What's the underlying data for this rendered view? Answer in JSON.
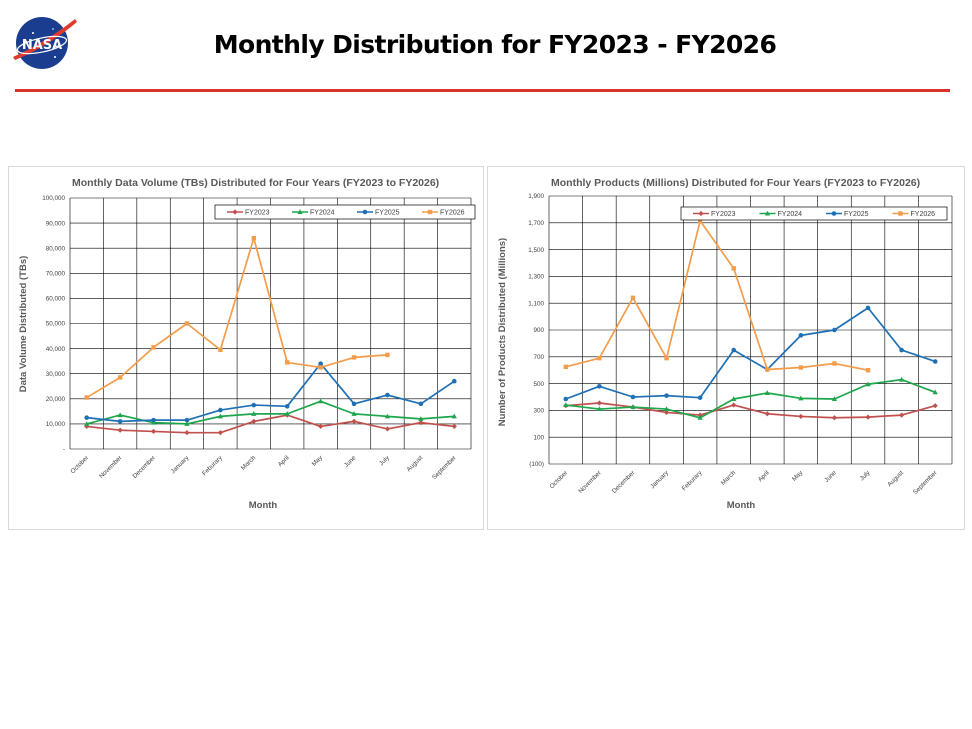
{
  "slide": {
    "title": "Monthly Distribution for FY2023 - FY2026",
    "logo_text": "NASA",
    "colors": {
      "rule": "#d7322b",
      "logo_blue": "#1a3d8f"
    }
  },
  "chart_data": [
    {
      "type": "line",
      "title": "Monthly Data Volume (TBs) Distributed for Four Years (FY2023 to FY2026)",
      "xlabel": "Month",
      "ylabel": "Data Volume Distributed (TBs)",
      "ylim": [
        0,
        100000
      ],
      "yticks": [
        "-",
        "10,000",
        "20,000",
        "30,000",
        "40,000",
        "50,000",
        "60,000",
        "70,000",
        "80,000",
        "90,000",
        "100,000"
      ],
      "grid": true,
      "legend_position": "top",
      "categories": [
        "October",
        "November",
        "December",
        "January",
        "Feburary",
        "March",
        "April",
        "May",
        "June",
        "July",
        "August",
        "September"
      ],
      "series": [
        {
          "name": "FY2023",
          "color": "#c0504d",
          "marker": "diamond",
          "values": [
            9000,
            7500,
            7000,
            6500,
            6500,
            11000,
            13500,
            9000,
            11000,
            8000,
            10500,
            9000
          ]
        },
        {
          "name": "FY2024",
          "color": "#1ea64c",
          "marker": "triangle",
          "values": [
            10000,
            13500,
            10500,
            10000,
            13000,
            14000,
            14000,
            19000,
            14000,
            13000,
            12000,
            13000
          ]
        },
        {
          "name": "FY2025",
          "color": "#1f6fb5",
          "marker": "circle",
          "values": [
            12500,
            11000,
            11500,
            11500,
            15500,
            17500,
            17000,
            34000,
            18000,
            21500,
            18000,
            27000
          ]
        },
        {
          "name": "FY2026",
          "color": "#f39c4a",
          "marker": "square",
          "values": [
            20500,
            28500,
            40500,
            50000,
            39500,
            84000,
            34500,
            32500,
            36500,
            37500,
            null,
            null
          ]
        }
      ]
    },
    {
      "type": "line",
      "title": "Monthly Products (Millions) Distributed for Four Years (FY2023 to FY2026)",
      "xlabel": "Month",
      "ylabel": "Number of Products Distributed (Millions)",
      "ylim": [
        -100,
        1900
      ],
      "yticks": [
        "(100)",
        "100",
        "300",
        "500",
        "700",
        "900",
        "1,100",
        "1,300",
        "1,500",
        "1,700",
        "1,900"
      ],
      "grid": true,
      "legend_position": "top",
      "categories": [
        "October",
        "November",
        "December",
        "January",
        "Feburary",
        "March",
        "April",
        "May",
        "June",
        "July",
        "August",
        "September"
      ],
      "series": [
        {
          "name": "FY2023",
          "color": "#c0504d",
          "marker": "diamond",
          "values": [
            335,
            355,
            325,
            285,
            265,
            340,
            275,
            255,
            245,
            250,
            265,
            335
          ]
        },
        {
          "name": "FY2024",
          "color": "#1ea64c",
          "marker": "triangle",
          "values": [
            340,
            310,
            325,
            310,
            245,
            385,
            430,
            390,
            385,
            495,
            530,
            435
          ]
        },
        {
          "name": "FY2025",
          "color": "#1f6fb5",
          "marker": "circle",
          "values": [
            385,
            480,
            400,
            410,
            395,
            750,
            605,
            860,
            900,
            1065,
            750,
            665
          ]
        },
        {
          "name": "FY2026",
          "color": "#f39c4a",
          "marker": "square",
          "values": [
            625,
            690,
            1140,
            690,
            1715,
            1360,
            605,
            620,
            650,
            600,
            null,
            null
          ]
        }
      ]
    }
  ]
}
